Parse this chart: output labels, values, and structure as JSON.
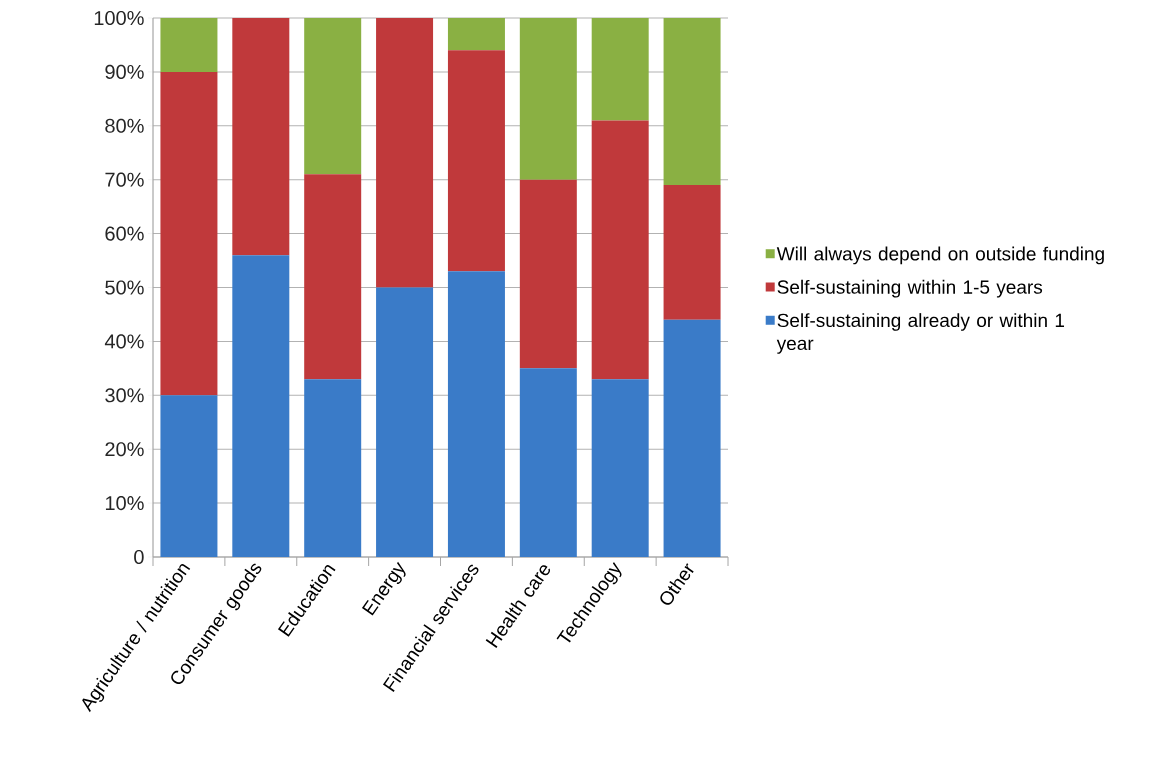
{
  "chart_data": {
    "type": "bar",
    "stacked": true,
    "categories": [
      "Agriculture / nutrition",
      "Consumer goods",
      "Education",
      "Energy",
      "Financial services",
      "Health care",
      "Technology",
      "Other"
    ],
    "series": [
      {
        "name": "Self-sustaining already or within 1 year",
        "color": "#3a7bc8",
        "values": [
          30,
          56,
          33,
          50,
          53,
          35,
          33,
          44
        ]
      },
      {
        "name": "Self-sustaining within 1-5 years",
        "color": "#c0393b",
        "values": [
          60,
          44,
          38,
          50,
          41,
          35,
          48,
          25
        ]
      },
      {
        "name": "Will always depend on outside funding",
        "color": "#8ab043",
        "values": [
          10,
          0,
          29,
          0,
          6,
          30,
          19,
          31
        ]
      }
    ],
    "ylim": [
      0,
      100
    ],
    "yticks": [
      0,
      {
        "value": 10,
        "label": "10%"
      },
      {
        "value": 20,
        "label": "20%"
      },
      {
        "value": 30,
        "label": "30%"
      },
      {
        "value": 40,
        "label": "40%"
      },
      {
        "value": 50,
        "label": "50%"
      },
      {
        "value": 60,
        "label": "60%"
      },
      {
        "value": 70,
        "label": "70%"
      },
      {
        "value": 80,
        "label": "80%"
      },
      {
        "value": 90,
        "label": "90%"
      },
      {
        "value": 100,
        "label": "100%"
      }
    ],
    "grid": "y",
    "legend": "right"
  }
}
